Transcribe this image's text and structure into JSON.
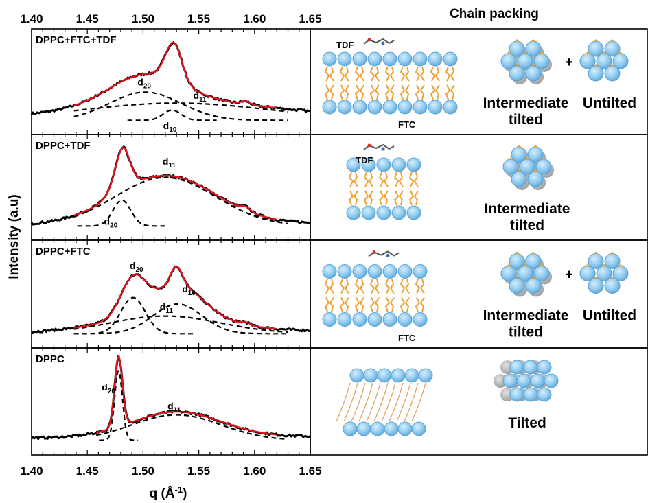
{
  "chart_data": {
    "type": "line",
    "xlabel": "q (Å⁻¹)",
    "xlabel_main": "q (Å",
    "xlabel_sup": "-1",
    "xlabel_close": ")",
    "ylabel": "Intensity (a.u)",
    "xlim": [
      1.4,
      1.65
    ],
    "x_ticks": [
      1.4,
      1.45,
      1.5,
      1.55,
      1.6,
      1.65
    ],
    "x_tick_labels": [
      "1.40",
      "1.45",
      "1.50",
      "1.55",
      "1.60",
      "1.65"
    ],
    "right_header": "Chain packing",
    "panels": [
      {
        "label": "DPPC+FTC+TDF",
        "background": 0.02,
        "peaks": [
          {
            "label": "d",
            "sub": "20",
            "center": 1.502,
            "width": 0.032,
            "amp": 0.36
          },
          {
            "label": "d",
            "sub": "11",
            "center": 1.53,
            "width": 0.085,
            "amp": 0.22
          },
          {
            "label": "d",
            "sub": "10",
            "center": 1.526,
            "width": 0.008,
            "amp": 0.13
          }
        ],
        "extras": [
          {
            "center": 1.528,
            "width": 0.007,
            "amp": 0.36
          },
          {
            "center": 1.592,
            "width": 0.004,
            "amp": 0.04
          }
        ],
        "fit_range": [
          1.438,
          1.62
        ],
        "packing": [
          {
            "label_lines": [
              "Intermediate",
              "tilted"
            ],
            "arrangement": "intermediate"
          },
          {
            "label_lines": [
              "Untilted"
            ],
            "arrangement": "untilted"
          }
        ],
        "plus": "+",
        "molecules": [
          "TDF",
          "FTC"
        ]
      },
      {
        "label": "DPPC+TDF",
        "background": 0.02,
        "peaks": [
          {
            "label": "d",
            "sub": "20",
            "center": 1.481,
            "width": 0.008,
            "amp": 0.33
          },
          {
            "label": "d",
            "sub": "11",
            "center": 1.52,
            "width": 0.045,
            "amp": 0.62
          }
        ],
        "extras": [
          {
            "center": 1.482,
            "width": 0.005,
            "amp": 0.22
          },
          {
            "center": 1.592,
            "width": 0.004,
            "amp": 0.05
          }
        ],
        "fit_range": [
          1.438,
          1.62
        ],
        "packing": [
          {
            "label_lines": [
              "Intermediate",
              "tilted"
            ],
            "arrangement": "intermediate"
          }
        ],
        "plus": "",
        "molecules": [
          "TDF"
        ]
      },
      {
        "label": "DPPC+FTC",
        "background": 0.02,
        "peaks": [
          {
            "label": "d",
            "sub": "20",
            "center": 1.491,
            "width": 0.011,
            "amp": 0.45
          },
          {
            "label": "d",
            "sub": "11",
            "center": 1.52,
            "width": 0.05,
            "amp": 0.22
          },
          {
            "label": "d",
            "sub": "10",
            "center": 1.531,
            "width": 0.022,
            "amp": 0.37
          }
        ],
        "extras": [
          {
            "center": 1.53,
            "width": 0.005,
            "amp": 0.23
          },
          {
            "center": 1.592,
            "width": 0.004,
            "amp": 0.03
          }
        ],
        "fit_range": [
          1.438,
          1.62
        ],
        "packing": [
          {
            "label_lines": [
              "Intermediate",
              "tilted"
            ],
            "arrangement": "intermediate"
          },
          {
            "label_lines": [
              "Untilted"
            ],
            "arrangement": "untilted"
          }
        ],
        "plus": "+",
        "molecules": [
          "FTC"
        ]
      },
      {
        "label": "DPPC",
        "background": 0.04,
        "peaks": [
          {
            "label": "d",
            "sub": "20",
            "center": 1.478,
            "width": 0.0035,
            "amp": 0.88
          },
          {
            "label": "d",
            "sub": "11",
            "center": 1.53,
            "width": 0.04,
            "amp": 0.32
          }
        ],
        "extras": [],
        "fit_range": [
          1.458,
          1.62
        ],
        "packing": [
          {
            "label_lines": [
              "Tilted"
            ],
            "arrangement": "tilted"
          }
        ],
        "plus": "",
        "molecules": []
      }
    ]
  },
  "colors": {
    "data_points": "#000000",
    "fit_line": "#e0141e",
    "component_lines": "#000000",
    "lipid_head": "#8ec9ee",
    "lipid_head_dark": "#5aa4d6",
    "lipid_tail": "#f0a030",
    "tilted_tail": "#e6a060",
    "shadow_grey": "#a8a8a8"
  }
}
